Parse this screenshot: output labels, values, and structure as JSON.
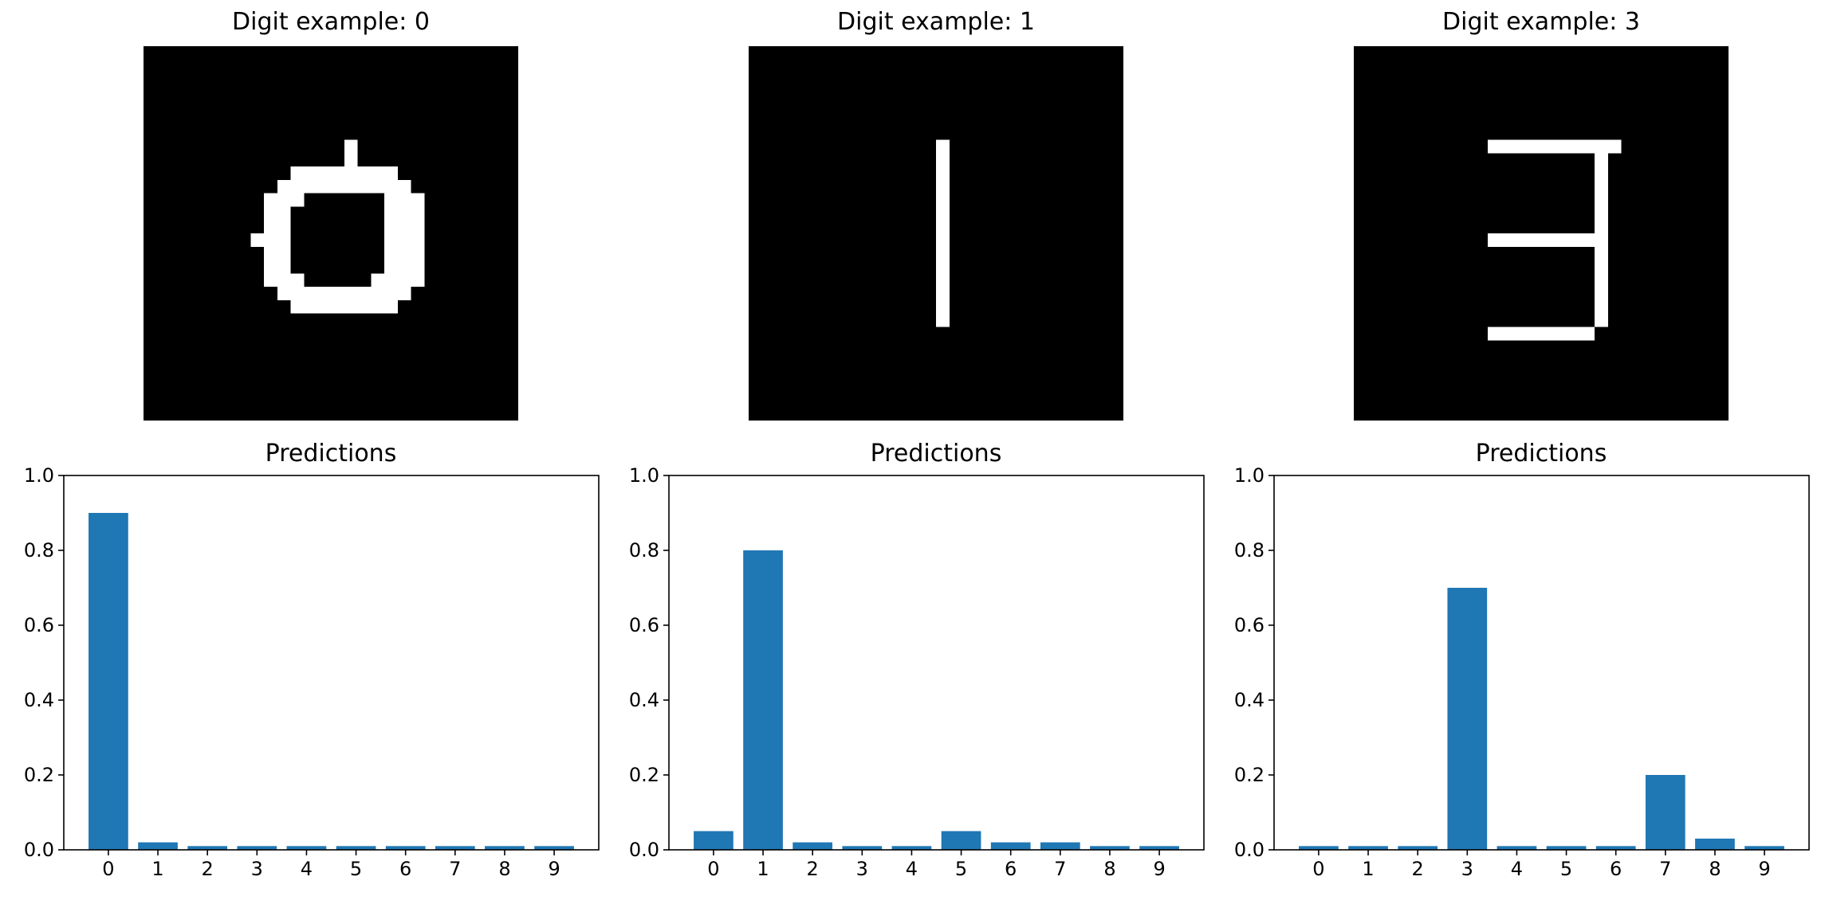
{
  "chart_data": [
    {
      "type": "image",
      "title": "Digit example: 0",
      "image_grid": {
        "size": 28,
        "fill_color": "#ffffff",
        "background": "#000000",
        "pixels": [
          [
            7,
            15
          ],
          [
            8,
            15
          ],
          [
            9,
            11
          ],
          [
            9,
            12
          ],
          [
            9,
            13
          ],
          [
            9,
            14
          ],
          [
            9,
            15
          ],
          [
            9,
            16
          ],
          [
            9,
            17
          ],
          [
            9,
            18
          ],
          [
            10,
            10
          ],
          [
            10,
            11
          ],
          [
            10,
            12
          ],
          [
            10,
            13
          ],
          [
            10,
            14
          ],
          [
            10,
            15
          ],
          [
            10,
            16
          ],
          [
            10,
            17
          ],
          [
            10,
            18
          ],
          [
            10,
            19
          ],
          [
            11,
            9
          ],
          [
            11,
            10
          ],
          [
            11,
            11
          ],
          [
            11,
            18
          ],
          [
            11,
            19
          ],
          [
            11,
            20
          ],
          [
            12,
            9
          ],
          [
            12,
            10
          ],
          [
            12,
            18
          ],
          [
            12,
            19
          ],
          [
            12,
            20
          ],
          [
            13,
            9
          ],
          [
            13,
            10
          ],
          [
            13,
            18
          ],
          [
            13,
            19
          ],
          [
            13,
            20
          ],
          [
            14,
            8
          ],
          [
            14,
            9
          ],
          [
            14,
            10
          ],
          [
            14,
            18
          ],
          [
            14,
            19
          ],
          [
            14,
            20
          ],
          [
            15,
            9
          ],
          [
            15,
            10
          ],
          [
            15,
            18
          ],
          [
            15,
            19
          ],
          [
            15,
            20
          ],
          [
            16,
            9
          ],
          [
            16,
            10
          ],
          [
            16,
            18
          ],
          [
            16,
            19
          ],
          [
            16,
            20
          ],
          [
            17,
            9
          ],
          [
            17,
            10
          ],
          [
            17,
            11
          ],
          [
            17,
            17
          ],
          [
            17,
            18
          ],
          [
            17,
            19
          ],
          [
            17,
            20
          ],
          [
            18,
            10
          ],
          [
            18,
            11
          ],
          [
            18,
            12
          ],
          [
            18,
            13
          ],
          [
            18,
            14
          ],
          [
            18,
            15
          ],
          [
            18,
            16
          ],
          [
            18,
            17
          ],
          [
            18,
            18
          ],
          [
            18,
            19
          ],
          [
            19,
            11
          ],
          [
            19,
            12
          ],
          [
            19,
            13
          ],
          [
            19,
            14
          ],
          [
            19,
            15
          ],
          [
            19,
            16
          ],
          [
            19,
            17
          ],
          [
            19,
            18
          ]
        ]
      }
    },
    {
      "type": "image",
      "title": "Digit example: 1",
      "image_grid": {
        "size": 28,
        "fill_color": "#ffffff",
        "background": "#000000",
        "pixels": [
          [
            7,
            14
          ],
          [
            8,
            14
          ],
          [
            9,
            14
          ],
          [
            10,
            14
          ],
          [
            11,
            14
          ],
          [
            12,
            14
          ],
          [
            13,
            14
          ],
          [
            14,
            14
          ],
          [
            15,
            14
          ],
          [
            16,
            14
          ],
          [
            17,
            14
          ],
          [
            18,
            14
          ],
          [
            19,
            14
          ],
          [
            20,
            14
          ]
        ]
      }
    },
    {
      "type": "image",
      "title": "Digit example: 3",
      "image_grid": {
        "size": 28,
        "fill_color": "#ffffff",
        "background": "#000000",
        "pixels": [
          [
            7,
            10
          ],
          [
            7,
            11
          ],
          [
            7,
            12
          ],
          [
            7,
            13
          ],
          [
            7,
            14
          ],
          [
            7,
            15
          ],
          [
            7,
            16
          ],
          [
            7,
            17
          ],
          [
            7,
            18
          ],
          [
            7,
            19
          ],
          [
            8,
            18
          ],
          [
            9,
            18
          ],
          [
            10,
            18
          ],
          [
            11,
            18
          ],
          [
            12,
            18
          ],
          [
            13,
            18
          ],
          [
            14,
            10
          ],
          [
            14,
            11
          ],
          [
            14,
            12
          ],
          [
            14,
            13
          ],
          [
            14,
            14
          ],
          [
            14,
            15
          ],
          [
            14,
            16
          ],
          [
            14,
            17
          ],
          [
            14,
            18
          ],
          [
            15,
            18
          ],
          [
            16,
            18
          ],
          [
            17,
            18
          ],
          [
            18,
            18
          ],
          [
            19,
            18
          ],
          [
            20,
            18
          ],
          [
            21,
            10
          ],
          [
            21,
            11
          ],
          [
            21,
            12
          ],
          [
            21,
            13
          ],
          [
            21,
            14
          ],
          [
            21,
            15
          ],
          [
            21,
            16
          ],
          [
            21,
            17
          ]
        ]
      }
    },
    {
      "type": "bar",
      "title": "Predictions",
      "categories": [
        "0",
        "1",
        "2",
        "3",
        "4",
        "5",
        "6",
        "7",
        "8",
        "9"
      ],
      "values": [
        0.9,
        0.02,
        0.01,
        0.01,
        0.01,
        0.01,
        0.01,
        0.01,
        0.01,
        0.01
      ],
      "ylim": [
        0,
        1.0
      ],
      "yticks": [
        "0.0",
        "0.2",
        "0.4",
        "0.6",
        "0.8",
        "1.0"
      ],
      "bar_color": "#1f77b4",
      "grid": false
    },
    {
      "type": "bar",
      "title": "Predictions",
      "categories": [
        "0",
        "1",
        "2",
        "3",
        "4",
        "5",
        "6",
        "7",
        "8",
        "9"
      ],
      "values": [
        0.05,
        0.8,
        0.02,
        0.01,
        0.01,
        0.05,
        0.02,
        0.02,
        0.01,
        0.01
      ],
      "ylim": [
        0,
        1.0
      ],
      "yticks": [
        "0.0",
        "0.2",
        "0.4",
        "0.6",
        "0.8",
        "1.0"
      ],
      "bar_color": "#1f77b4",
      "grid": false
    },
    {
      "type": "bar",
      "title": "Predictions",
      "categories": [
        "0",
        "1",
        "2",
        "3",
        "4",
        "5",
        "6",
        "7",
        "8",
        "9"
      ],
      "values": [
        0.01,
        0.01,
        0.01,
        0.7,
        0.01,
        0.01,
        0.01,
        0.2,
        0.03,
        0.01
      ],
      "ylim": [
        0,
        1.0
      ],
      "yticks": [
        "0.0",
        "0.2",
        "0.4",
        "0.6",
        "0.8",
        "1.0"
      ],
      "bar_color": "#1f77b4",
      "grid": false
    }
  ]
}
